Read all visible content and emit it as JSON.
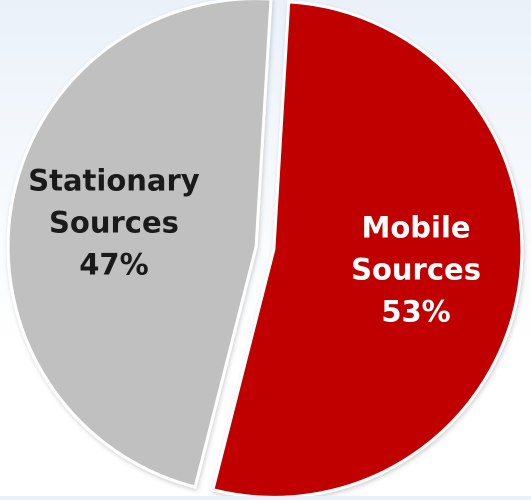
{
  "chart_data": {
    "type": "pie",
    "title": "",
    "slices": [
      {
        "label_line1": "Mobile",
        "label_line2": "Sources",
        "value_label": "53%",
        "value": 53,
        "color": "#c00000",
        "text_color": "#ffffff",
        "exploded": true
      },
      {
        "label_line1": "Stationary",
        "label_line2": "Sources",
        "value_label": "47%",
        "value": 47,
        "color": "#c0c0c0",
        "text_color": "#1a1a1a",
        "exploded": true
      }
    ],
    "legend": "none",
    "slice_border_color": "#ffffff"
  }
}
